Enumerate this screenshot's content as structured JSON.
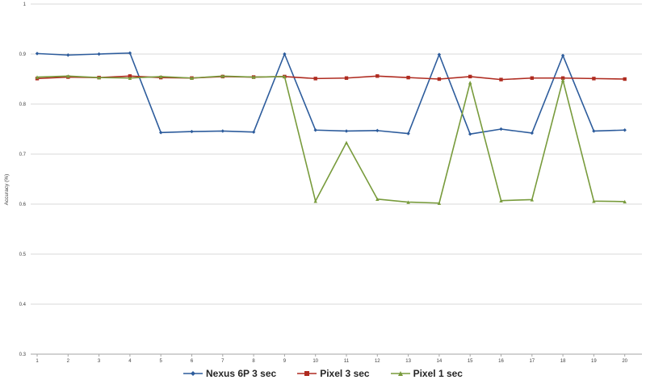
{
  "chart_data": {
    "type": "line",
    "title": "",
    "ylabel": "Accuracy (%)",
    "xlabel": "",
    "ylim": [
      0.3,
      1.0
    ],
    "grid": true,
    "legend_position": "bottom",
    "yticks": [
      {
        "value": 1.0,
        "label": "1"
      },
      {
        "value": 0.9,
        "label": "0.9"
      },
      {
        "value": 0.8,
        "label": "0.8"
      },
      {
        "value": 0.7,
        "label": "0.7"
      },
      {
        "value": 0.6,
        "label": "0.6"
      },
      {
        "value": 0.5,
        "label": "0.5"
      },
      {
        "value": 0.4,
        "label": "0.4"
      },
      {
        "value": 0.3,
        "label": "0.3"
      }
    ],
    "x": [
      1,
      2,
      3,
      4,
      5,
      6,
      7,
      8,
      9,
      10,
      11,
      12,
      13,
      14,
      15,
      16,
      17,
      18,
      19,
      20
    ],
    "x_labels": [
      "1",
      "2",
      "3",
      "4",
      "5",
      "6",
      "7",
      "8",
      "9",
      "10",
      "11",
      "12",
      "13",
      "14",
      "15",
      "16",
      "17",
      "18",
      "19",
      "20"
    ],
    "series": [
      {
        "name": "Nexus 6P 3 sec",
        "color": "#2D5C9C",
        "marker": "diamond",
        "values": [
          0.901,
          0.898,
          0.9,
          0.902,
          0.743,
          0.745,
          0.746,
          0.744,
          0.9,
          0.748,
          0.746,
          0.747,
          0.741,
          0.899,
          0.74,
          0.75,
          0.742,
          0.897,
          0.746,
          0.748
        ]
      },
      {
        "name": "Pixel 3 sec",
        "color": "#AF2B20",
        "marker": "square",
        "values": [
          0.851,
          0.854,
          0.853,
          0.856,
          0.853,
          0.852,
          0.855,
          0.854,
          0.855,
          0.851,
          0.852,
          0.856,
          0.853,
          0.85,
          0.855,
          0.849,
          0.852,
          0.852,
          0.851,
          0.85
        ]
      },
      {
        "name": "Pixel 1 sec",
        "color": "#789B3C",
        "marker": "triangle",
        "values": [
          0.854,
          0.856,
          0.853,
          0.852,
          0.855,
          0.852,
          0.856,
          0.854,
          0.855,
          0.606,
          0.723,
          0.61,
          0.604,
          0.602,
          0.843,
          0.607,
          0.609,
          0.848,
          0.606,
          0.605
        ]
      }
    ],
    "colors": {
      "grid": "#D9D9D9",
      "axis": "#A6A6A6",
      "tick_text": "#404040",
      "legend_text": "#262626",
      "background": "#FFFFFF"
    }
  }
}
